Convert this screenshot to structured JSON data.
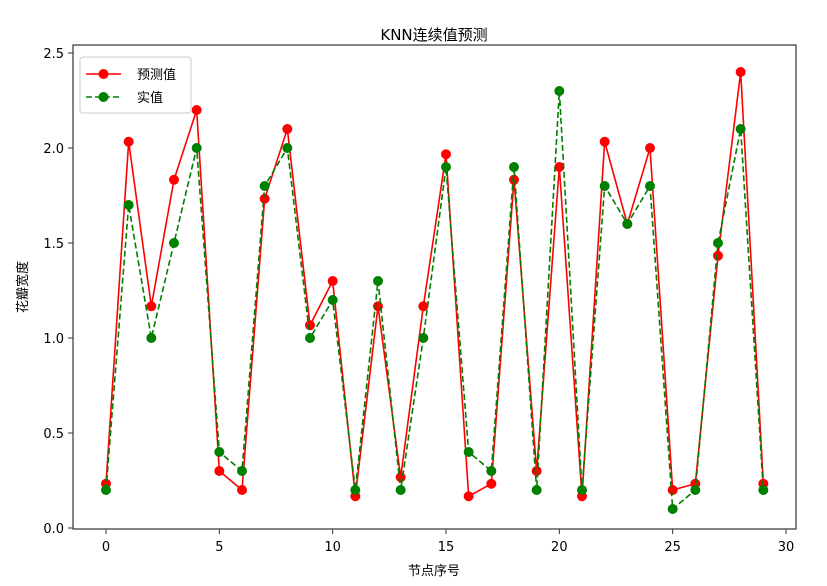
{
  "chart_data": {
    "type": "line",
    "title": "KNN连续值预测",
    "xlabel": "节点序号",
    "ylabel": "花瓣宽度",
    "x": [
      0,
      1,
      2,
      3,
      4,
      5,
      6,
      7,
      8,
      9,
      10,
      11,
      12,
      13,
      14,
      15,
      16,
      17,
      18,
      19,
      20,
      21,
      22,
      23,
      24,
      25,
      26,
      27,
      28,
      29
    ],
    "xlim": [
      -1.5,
      30.5
    ],
    "ylim": [
      0.0,
      2.5
    ],
    "xticks": [
      0,
      5,
      10,
      15,
      20,
      25,
      30
    ],
    "xtick_labels": [
      "0",
      "5",
      "10",
      "15",
      "20",
      "25",
      "30"
    ],
    "yticks": [
      0.0,
      0.5,
      1.0,
      1.5,
      2.0,
      2.5
    ],
    "ytick_labels": [
      "0.0",
      "0.5",
      "1.0",
      "1.5",
      "2.0",
      "2.5"
    ],
    "grid": false,
    "legend_position": "upper left",
    "series": [
      {
        "name": "预测值",
        "color": "#ff0000",
        "linestyle": "solid",
        "marker": "circle",
        "values": [
          0.233,
          2.033,
          1.167,
          1.833,
          2.2,
          0.3,
          0.2,
          1.733,
          2.1,
          1.067,
          1.3,
          0.167,
          1.167,
          0.267,
          1.167,
          1.967,
          0.167,
          0.233,
          1.833,
          0.3,
          1.9,
          0.167,
          2.033,
          1.6,
          2.0,
          0.2,
          0.233,
          1.433,
          2.4,
          0.233
        ]
      },
      {
        "name": "实值",
        "color": "#008000",
        "linestyle": "dashed",
        "marker": "circle",
        "values": [
          0.2,
          1.7,
          1.0,
          1.5,
          2.0,
          0.4,
          0.3,
          1.8,
          2.0,
          1.0,
          1.2,
          0.2,
          1.3,
          0.2,
          1.0,
          1.9,
          0.4,
          0.3,
          1.9,
          0.2,
          2.3,
          0.2,
          1.8,
          1.6,
          1.8,
          0.1,
          0.2,
          1.5,
          2.1,
          0.2
        ]
      }
    ]
  }
}
